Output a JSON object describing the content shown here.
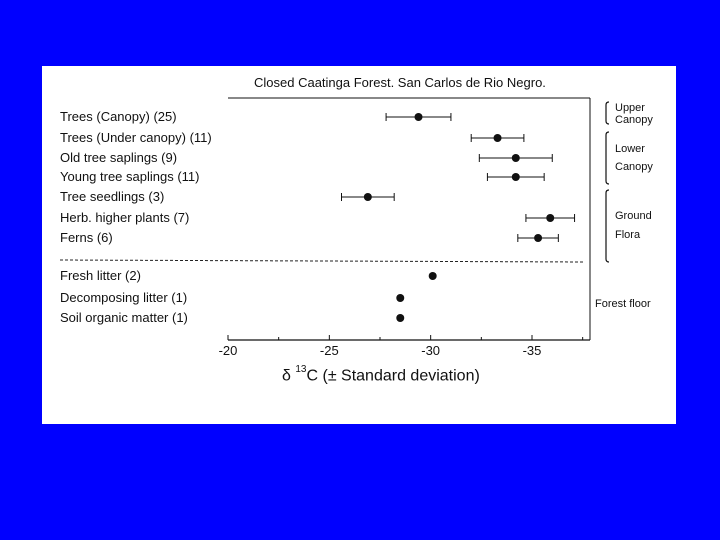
{
  "slide": {
    "background": "#0000ff",
    "panel_background": "#ffffff"
  },
  "chart_data": {
    "type": "scatter",
    "title": "Closed Caatinga Forest. San Carlos de Rio Negro.",
    "xlabel_prefix": "δ",
    "xlabel_sup": "13",
    "xlabel_rest": "C (± Standard deviation)",
    "xlim": [
      -20,
      -38
    ],
    "xticks": [
      -20,
      -25,
      -30,
      -35
    ],
    "tick_labels": [
      "-20",
      "-25",
      "-30",
      "-35"
    ],
    "reference_line": "dashed separator between plant categories and forest floor",
    "points": [
      {
        "label": "Trees (Canopy) (25)",
        "mean": -29.4,
        "sd": 1.6
      },
      {
        "label": "Trees (Under canopy) (11)",
        "mean": -33.3,
        "sd": 1.3
      },
      {
        "label": "Old tree saplings (9)",
        "mean": -34.2,
        "sd": 1.8
      },
      {
        "label": "Young tree saplings (11)",
        "mean": -34.2,
        "sd": 1.4
      },
      {
        "label": "Tree seedlings (3)",
        "mean": -26.9,
        "sd": 1.3
      },
      {
        "label": "Herb. higher plants (7)",
        "mean": -35.9,
        "sd": 1.2
      },
      {
        "label": "Ferns (6)",
        "mean": -35.3,
        "sd": 1.0
      },
      {
        "label": "Fresh litter (2)",
        "mean": -30.1,
        "sd": 0
      },
      {
        "label": "Decomposing litter (1)",
        "mean": -28.5,
        "sd": 0
      },
      {
        "label": "Soil organic matter (1)",
        "mean": -28.5,
        "sd": 0
      }
    ],
    "groups": [
      {
        "lines": [
          "Upper",
          "Canopy"
        ]
      },
      {
        "lines": [
          "Lower",
          "Canopy"
        ]
      },
      {
        "lines": [
          "Ground",
          "Flora"
        ]
      },
      {
        "lines": [
          "Forest floor"
        ]
      }
    ]
  }
}
